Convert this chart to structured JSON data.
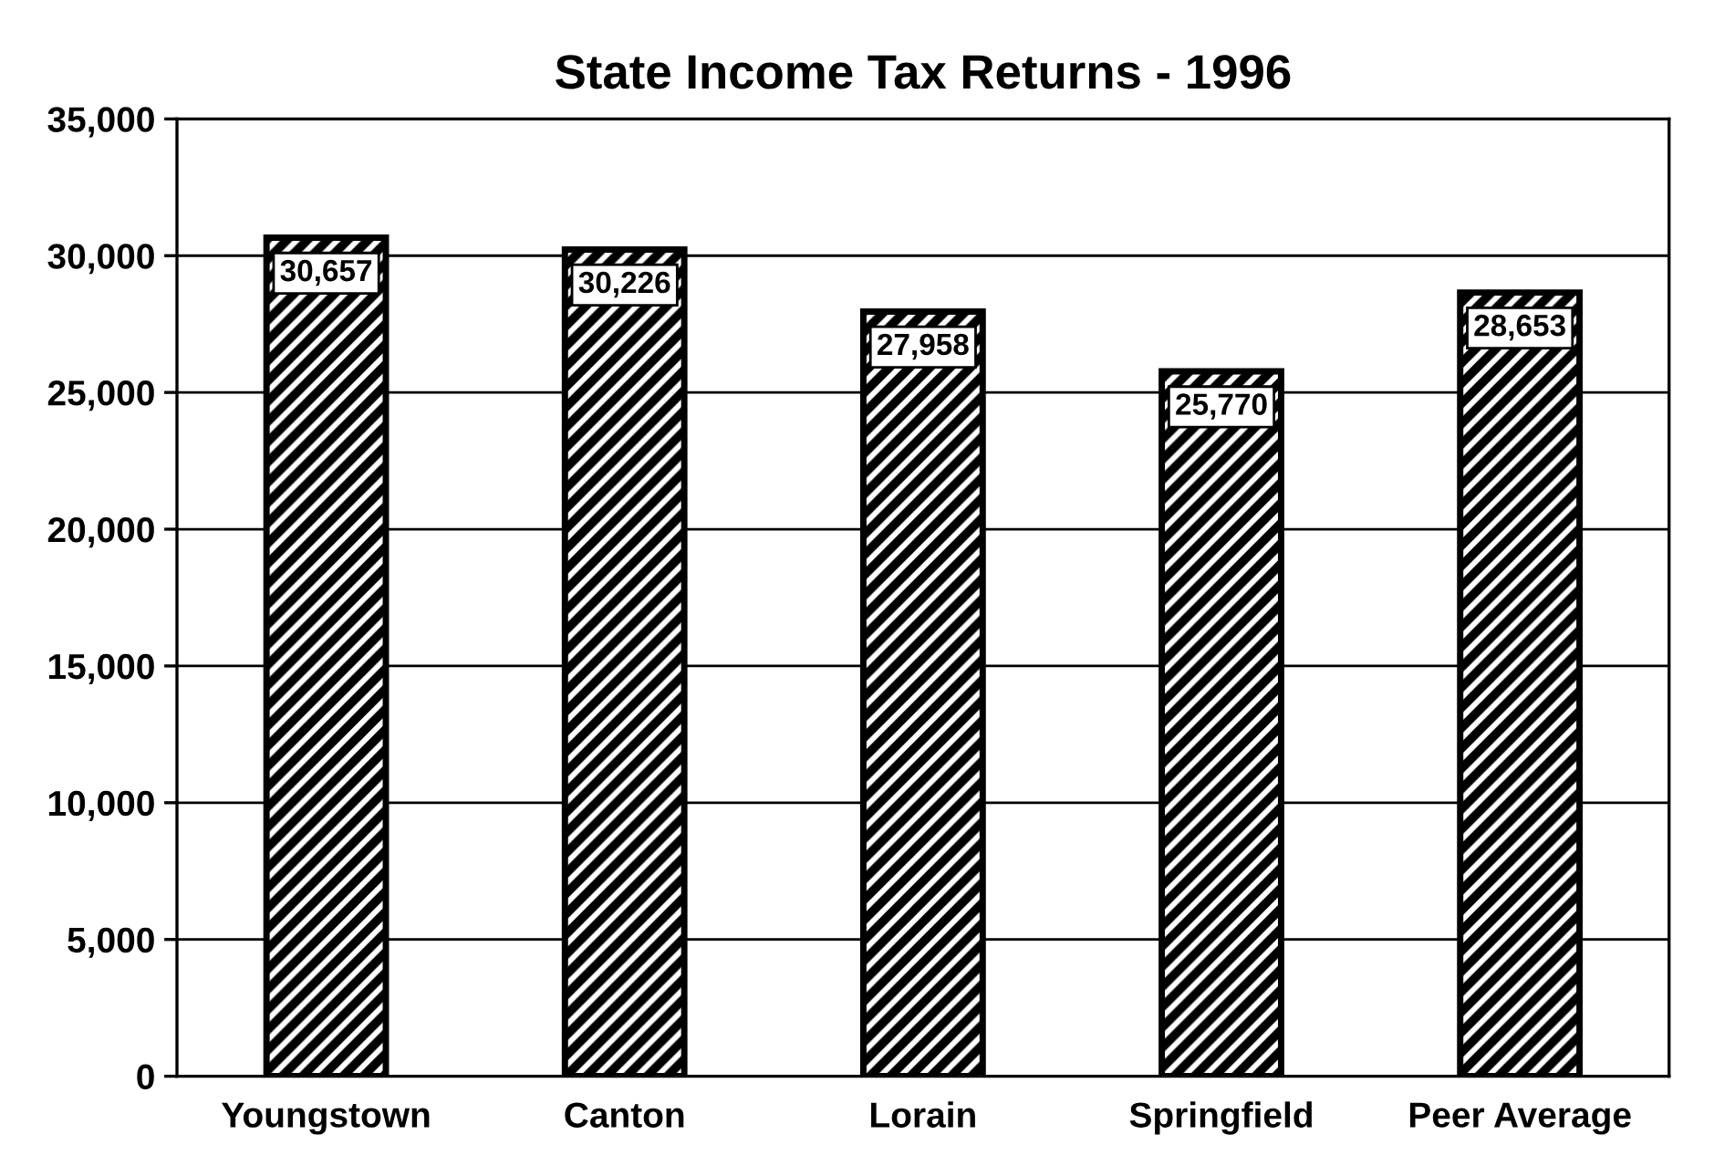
{
  "chart_data": {
    "type": "bar",
    "title": "State Income Tax Returns - 1996",
    "categories": [
      "Youngstown",
      "Canton",
      "Lorain",
      "Springfield",
      "Peer Average"
    ],
    "values": [
      30657,
      30226,
      27958,
      25770,
      28653
    ],
    "value_labels": [
      "30,657",
      "30,226",
      "27,958",
      "25,770",
      "28,653"
    ],
    "color": "#000000",
    "ylim": [
      0,
      35000
    ],
    "yticks": [
      {
        "value": 0,
        "label": "0"
      },
      {
        "value": 5000,
        "label": "5,000"
      },
      {
        "value": 10000,
        "label": "10,000"
      },
      {
        "value": 15000,
        "label": "15,000"
      },
      {
        "value": 20000,
        "label": "20,000"
      },
      {
        "value": 25000,
        "label": "25,000"
      },
      {
        "value": 30000,
        "label": "30,000"
      },
      {
        "value": 35000,
        "label": "35,000"
      }
    ],
    "grid": "y",
    "legend": false
  }
}
